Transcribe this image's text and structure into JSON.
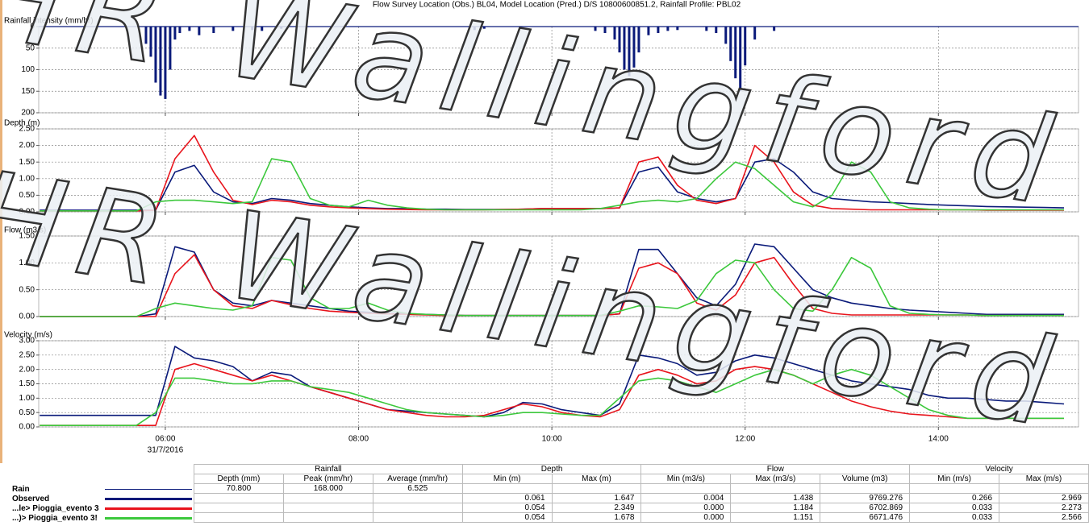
{
  "title": "Flow Survey Location (Obs.) BL04, Model Location (Pred.) D/S 10800600851.2, Rainfall Profile: PBL02",
  "watermark": "HR Wallingford",
  "chart_data": [
    {
      "type": "bar",
      "ylabel": "Rainfall intensity (mm/hr)",
      "y_inverted": true,
      "x": [
        5.8,
        5.85,
        5.9,
        5.95,
        6.0,
        6.05,
        6.1,
        6.15,
        6.25,
        6.35,
        6.5,
        6.7,
        6.9,
        7.0,
        7.2,
        9.2,
        9.3,
        10.45,
        10.55,
        10.65,
        10.7,
        10.75,
        10.8,
        10.85,
        10.9,
        11.0,
        11.1,
        11.2,
        11.3,
        11.6,
        11.7,
        11.8,
        11.85,
        11.9,
        11.95,
        12.0,
        12.1,
        12.3
      ],
      "series": [
        {
          "name": "Rain",
          "color": "#0a1a7a",
          "values": [
            40,
            70,
            130,
            160,
            168,
            100,
            30,
            15,
            10,
            20,
            15,
            10,
            8,
            10,
            5,
            8,
            5,
            10,
            15,
            30,
            60,
            100,
            115,
            95,
            60,
            20,
            15,
            10,
            8,
            10,
            15,
            40,
            80,
            120,
            150,
            90,
            30,
            10
          ]
        }
      ],
      "xlim": [
        4.69,
        15.45
      ],
      "xticks": [
        6,
        8,
        10,
        12,
        14
      ],
      "ylim": [
        0,
        200
      ],
      "yticks": [
        0,
        50,
        100,
        150,
        200
      ],
      "grid": true
    },
    {
      "type": "line",
      "ylabel": "Depth (m)",
      "x": [
        4.7,
        4.9,
        5.1,
        5.3,
        5.5,
        5.7,
        5.9,
        6.1,
        6.3,
        6.5,
        6.7,
        6.9,
        7.1,
        7.3,
        7.5,
        7.7,
        7.9,
        8.1,
        8.3,
        8.5,
        8.7,
        8.9,
        9.1,
        9.3,
        9.5,
        9.7,
        9.9,
        10.1,
        10.3,
        10.5,
        10.7,
        10.9,
        11.1,
        11.3,
        11.5,
        11.7,
        11.9,
        12.1,
        12.3,
        12.5,
        12.7,
        12.9,
        13.1,
        13.3,
        13.5,
        13.7,
        13.9,
        14.1,
        14.3,
        14.5,
        14.7,
        14.9,
        15.1,
        15.3
      ],
      "series": [
        {
          "name": "Observed",
          "color": "#0a1a7a",
          "values": [
            0.05,
            0.05,
            0.05,
            0.05,
            0.05,
            0.05,
            0.05,
            1.2,
            1.4,
            0.6,
            0.3,
            0.25,
            0.4,
            0.35,
            0.25,
            0.2,
            0.15,
            0.12,
            0.1,
            0.1,
            0.08,
            0.08,
            0.07,
            0.07,
            0.07,
            0.08,
            0.1,
            0.1,
            0.1,
            0.1,
            0.12,
            1.2,
            1.35,
            0.6,
            0.4,
            0.3,
            0.4,
            1.5,
            1.6,
            1.2,
            0.6,
            0.4,
            0.35,
            0.3,
            0.28,
            0.25,
            0.22,
            0.2,
            0.18,
            0.16,
            0.15,
            0.14,
            0.13,
            0.12
          ]
        },
        {
          "name": "...le> Pioggia_evento 3",
          "color": "#e8141c",
          "values": [
            0.03,
            0.03,
            0.03,
            0.03,
            0.03,
            0.03,
            0.05,
            1.6,
            2.3,
            1.2,
            0.35,
            0.22,
            0.35,
            0.3,
            0.2,
            0.15,
            0.12,
            0.1,
            0.08,
            0.07,
            0.06,
            0.06,
            0.06,
            0.06,
            0.07,
            0.08,
            0.1,
            0.1,
            0.1,
            0.1,
            0.12,
            1.5,
            1.65,
            0.8,
            0.35,
            0.25,
            0.4,
            2.0,
            1.5,
            0.6,
            0.2,
            0.1,
            0.08,
            0.06,
            0.06,
            0.06,
            0.06,
            0.06,
            0.06,
            0.05,
            0.05,
            0.05,
            0.05,
            0.05
          ]
        },
        {
          "name": "...)> Pioggia_evento 3!",
          "color": "#3cc83c",
          "values": [
            0.03,
            0.03,
            0.03,
            0.03,
            0.03,
            0.03,
            0.3,
            0.35,
            0.35,
            0.3,
            0.25,
            0.3,
            1.6,
            1.5,
            0.4,
            0.2,
            0.15,
            0.35,
            0.2,
            0.12,
            0.08,
            0.06,
            0.06,
            0.06,
            0.06,
            0.06,
            0.06,
            0.06,
            0.06,
            0.1,
            0.2,
            0.3,
            0.35,
            0.3,
            0.4,
            1.0,
            1.5,
            1.3,
            0.8,
            0.3,
            0.15,
            0.5,
            1.5,
            1.2,
            0.3,
            0.12,
            0.08,
            0.06,
            0.06,
            0.06,
            0.06,
            0.06,
            0.06,
            0.06
          ]
        }
      ],
      "xlim": [
        4.69,
        15.45
      ],
      "xticks": [
        6,
        8,
        10,
        12,
        14
      ],
      "ylim": [
        0,
        2.5
      ],
      "yticks": [
        {
          "value": 0,
          "label": "0.00"
        },
        {
          "value": 0.5,
          "label": "0.50"
        },
        {
          "value": 1,
          "label": "1.00"
        },
        {
          "value": 1.5,
          "label": "1.50"
        },
        {
          "value": 2,
          "label": "2.00"
        },
        {
          "value": 2.5,
          "label": "2.50"
        }
      ],
      "grid": true
    },
    {
      "type": "line",
      "ylabel": "Flow (m3/s)",
      "x": [
        4.7,
        4.9,
        5.1,
        5.3,
        5.5,
        5.7,
        5.9,
        6.1,
        6.3,
        6.5,
        6.7,
        6.9,
        7.1,
        7.3,
        7.5,
        7.7,
        7.9,
        8.1,
        8.3,
        8.5,
        8.7,
        8.9,
        9.1,
        9.3,
        9.5,
        9.7,
        9.9,
        10.1,
        10.3,
        10.5,
        10.7,
        10.9,
        11.1,
        11.3,
        11.5,
        11.7,
        11.9,
        12.1,
        12.3,
        12.5,
        12.7,
        12.9,
        13.1,
        13.3,
        13.5,
        13.7,
        13.9,
        14.1,
        14.3,
        14.5,
        14.7,
        14.9,
        15.1,
        15.3
      ],
      "series": [
        {
          "color": "#0a1a7a",
          "values": [
            0,
            0,
            0,
            0,
            0,
            0,
            0.05,
            1.3,
            1.2,
            0.5,
            0.25,
            0.2,
            0.3,
            0.25,
            0.2,
            0.15,
            0.1,
            0.08,
            0.06,
            0.05,
            0.04,
            0.03,
            0.02,
            0.02,
            0.02,
            0.02,
            0.02,
            0.02,
            0.02,
            0.02,
            0.05,
            1.25,
            1.25,
            0.8,
            0.35,
            0.2,
            0.6,
            1.35,
            1.3,
            0.9,
            0.5,
            0.35,
            0.25,
            0.2,
            0.15,
            0.12,
            0.1,
            0.08,
            0.06,
            0.04,
            0.04,
            0.04,
            0.04,
            0.04
          ]
        },
        {
          "color": "#e8141c",
          "values": [
            0,
            0,
            0,
            0,
            0,
            0,
            0,
            0.8,
            1.15,
            0.5,
            0.2,
            0.15,
            0.3,
            0.22,
            0.15,
            0.1,
            0.08,
            0.06,
            0.05,
            0.04,
            0.03,
            0.02,
            0.02,
            0.02,
            0.02,
            0.02,
            0.02,
            0.02,
            0.02,
            0.02,
            0.05,
            0.9,
            1.0,
            0.8,
            0.25,
            0.12,
            0.4,
            1.0,
            1.1,
            0.6,
            0.15,
            0.06,
            0.03,
            0.03,
            0.03,
            0.03,
            0.03,
            0.03,
            0.03,
            0.02,
            0.02,
            0.02,
            0.02,
            0.02
          ]
        },
        {
          "color": "#3cc83c",
          "values": [
            0,
            0,
            0,
            0,
            0,
            0,
            0.15,
            0.25,
            0.2,
            0.15,
            0.12,
            0.2,
            1.1,
            1.05,
            0.35,
            0.15,
            0.15,
            0.25,
            0.12,
            0.06,
            0.04,
            0.03,
            0.02,
            0.02,
            0.02,
            0.02,
            0.02,
            0.02,
            0.02,
            0.02,
            0.1,
            0.2,
            0.18,
            0.15,
            0.3,
            0.8,
            1.05,
            1.0,
            0.5,
            0.15,
            0.1,
            0.5,
            1.1,
            0.9,
            0.2,
            0.06,
            0.04,
            0.03,
            0.03,
            0.02,
            0.02,
            0.02,
            0.02,
            0.02
          ]
        }
      ],
      "xlim": [
        4.69,
        15.45
      ],
      "xticks": [
        6,
        8,
        10,
        12,
        14
      ],
      "ylim": [
        0,
        1.5
      ],
      "yticks": [
        {
          "value": 0,
          "label": "0.00"
        },
        {
          "value": 0.5,
          "label": "0.50"
        },
        {
          "value": 1,
          "label": "1.00"
        },
        {
          "value": 1.5,
          "label": "1.50"
        }
      ],
      "grid": true
    },
    {
      "type": "line",
      "ylabel": "Velocity (m/s)",
      "date_label": "31/7/2016",
      "x": [
        4.7,
        4.9,
        5.1,
        5.3,
        5.5,
        5.7,
        5.9,
        6.1,
        6.3,
        6.5,
        6.7,
        6.9,
        7.1,
        7.3,
        7.5,
        7.7,
        7.9,
        8.1,
        8.3,
        8.5,
        8.7,
        8.9,
        9.1,
        9.3,
        9.5,
        9.7,
        9.9,
        10.1,
        10.3,
        10.5,
        10.7,
        10.9,
        11.1,
        11.3,
        11.5,
        11.7,
        11.9,
        12.1,
        12.3,
        12.5,
        12.7,
        12.9,
        13.1,
        13.3,
        13.5,
        13.7,
        13.9,
        14.1,
        14.3,
        14.5,
        14.7,
        14.9,
        15.1,
        15.3
      ],
      "series": [
        {
          "color": "#0a1a7a",
          "values": [
            0.4,
            0.4,
            0.4,
            0.4,
            0.4,
            0.4,
            0.4,
            2.8,
            2.4,
            2.3,
            2.1,
            1.6,
            1.9,
            1.8,
            1.4,
            1.2,
            1.0,
            0.8,
            0.6,
            0.55,
            0.5,
            0.45,
            0.4,
            0.35,
            0.5,
            0.85,
            0.8,
            0.6,
            0.5,
            0.4,
            0.8,
            2.5,
            2.4,
            2.2,
            1.8,
            1.9,
            2.3,
            2.5,
            2.4,
            2.2,
            2.0,
            1.8,
            1.6,
            1.5,
            1.4,
            1.3,
            1.1,
            1.0,
            1.0,
            0.95,
            0.9,
            0.9,
            0.85,
            0.8
          ]
        },
        {
          "color": "#e8141c",
          "values": [
            0.05,
            0.05,
            0.05,
            0.05,
            0.05,
            0.05,
            0.05,
            2.0,
            2.2,
            2.0,
            1.8,
            1.6,
            1.8,
            1.6,
            1.4,
            1.2,
            1.0,
            0.8,
            0.6,
            0.5,
            0.4,
            0.35,
            0.35,
            0.4,
            0.6,
            0.8,
            0.7,
            0.5,
            0.4,
            0.35,
            0.6,
            1.8,
            2.0,
            1.8,
            1.5,
            1.6,
            2.0,
            2.1,
            2.0,
            1.8,
            1.5,
            1.2,
            0.9,
            0.7,
            0.55,
            0.45,
            0.4,
            0.35,
            0.3,
            0.3,
            0.3,
            0.3,
            0.3,
            0.3
          ]
        },
        {
          "color": "#3cc83c",
          "values": [
            0.05,
            0.05,
            0.05,
            0.05,
            0.05,
            0.05,
            0.5,
            1.7,
            1.7,
            1.6,
            1.5,
            1.5,
            1.6,
            1.6,
            1.4,
            1.3,
            1.2,
            1.0,
            0.8,
            0.6,
            0.5,
            0.45,
            0.4,
            0.35,
            0.4,
            0.5,
            0.5,
            0.45,
            0.4,
            0.4,
            1.0,
            1.6,
            1.7,
            1.6,
            1.4,
            1.2,
            1.5,
            1.8,
            2.0,
            1.8,
            1.5,
            1.8,
            2.0,
            1.8,
            1.4,
            1.0,
            0.6,
            0.4,
            0.3,
            0.3,
            0.3,
            0.3,
            0.3,
            0.3
          ]
        }
      ],
      "xlim": [
        4.69,
        15.45
      ],
      "xticks": [
        {
          "value": 6,
          "label": "06:00"
        },
        {
          "value": 8,
          "label": "08:00"
        },
        {
          "value": 10,
          "label": "10:00"
        },
        {
          "value": 12,
          "label": "12:00"
        },
        {
          "value": 14,
          "label": "14:00"
        }
      ],
      "ylim": [
        0,
        3
      ],
      "yticks": [
        {
          "value": 0,
          "label": "0.00"
        },
        {
          "value": 0.5,
          "label": "0.50"
        },
        {
          "value": 1,
          "label": "1.00"
        },
        {
          "value": 1.5,
          "label": "1.50"
        },
        {
          "value": 2,
          "label": "2.00"
        },
        {
          "value": 2.5,
          "label": "2.50"
        },
        {
          "value": 3,
          "label": "3.00"
        }
      ],
      "grid": true
    }
  ],
  "table": {
    "groups": [
      "Rainfall",
      "Depth",
      "Flow",
      "Velocity"
    ],
    "columns": [
      "Depth (mm)",
      "Peak (mm/hr)",
      "Average (mm/hr)",
      "Min (m)",
      "Max (m)",
      "Min (m3/s)",
      "Max (m3/s)",
      "Volume (m3)",
      "Min (m/s)",
      "Max (m/s)"
    ],
    "rows": [
      [
        "70.800",
        "168.000",
        "6.525",
        null,
        null,
        null,
        null,
        null,
        null,
        null
      ],
      [
        null,
        null,
        null,
        "0.061",
        "1.647",
        "0.004",
        "1.438",
        "9769.276",
        "0.266",
        "2.969"
      ],
      [
        null,
        null,
        null,
        "0.054",
        "2.349",
        "0.000",
        "1.184",
        "6702.869",
        "0.033",
        "2.273"
      ],
      [
        null,
        null,
        null,
        "0.054",
        "1.678",
        "0.000",
        "1.151",
        "6671.476",
        "0.033",
        "2.566"
      ]
    ]
  }
}
